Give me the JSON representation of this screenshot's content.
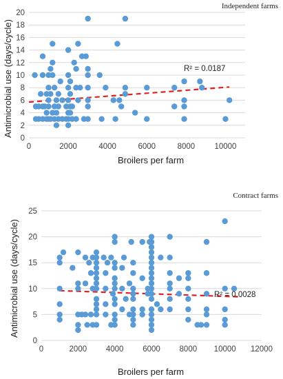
{
  "chart_data": [
    {
      "type": "scatter",
      "caption": "Independent farms",
      "xlabel": "Broilers per farm",
      "ylabel": "Antimicrobial use (days/cycle)",
      "xlim": [
        0,
        11000
      ],
      "ylim": [
        0,
        20
      ],
      "xticks": [
        0,
        2000,
        4000,
        6000,
        8000,
        10000
      ],
      "yticks": [
        0,
        2,
        4,
        6,
        8,
        10,
        12,
        14,
        16,
        18,
        20
      ],
      "x_tick_labels": [
        "0",
        "2000",
        "4000",
        "6000",
        "8000",
        "10000"
      ],
      "y_tick_labels": [
        "0",
        "2",
        "4",
        "6",
        "8",
        "10",
        "12",
        "14",
        "16",
        "18",
        "20"
      ],
      "grid": "horizontal",
      "trendline": {
        "style": "dashed linear",
        "r2_label": "R² = 0.0187",
        "x": [
          0,
          10200
        ],
        "y": [
          5.7,
          8.1
        ]
      },
      "points": [
        [
          300,
          10
        ],
        [
          350,
          5
        ],
        [
          350,
          3
        ],
        [
          500,
          5
        ],
        [
          500,
          3
        ],
        [
          600,
          7
        ],
        [
          700,
          13
        ],
        [
          700,
          10
        ],
        [
          700,
          5
        ],
        [
          700,
          3
        ],
        [
          800,
          5
        ],
        [
          900,
          7
        ],
        [
          900,
          4
        ],
        [
          900,
          3
        ],
        [
          1000,
          8
        ],
        [
          1000,
          10
        ],
        [
          1000,
          5
        ],
        [
          1000,
          3
        ],
        [
          1000,
          6
        ],
        [
          1100,
          11
        ],
        [
          1100,
          7
        ],
        [
          1100,
          3
        ],
        [
          1200,
          4
        ],
        [
          1200,
          10
        ],
        [
          1200,
          15
        ],
        [
          1200,
          12
        ],
        [
          1300,
          5
        ],
        [
          1300,
          8
        ],
        [
          1300,
          3
        ],
        [
          1400,
          6
        ],
        [
          1400,
          4
        ],
        [
          1400,
          2
        ],
        [
          1500,
          7
        ],
        [
          1500,
          3
        ],
        [
          1500,
          5
        ],
        [
          1600,
          9
        ],
        [
          1700,
          6
        ],
        [
          1700,
          3
        ],
        [
          1900,
          5
        ],
        [
          1900,
          3
        ],
        [
          2000,
          14
        ],
        [
          2000,
          10
        ],
        [
          2000,
          8
        ],
        [
          2000,
          6
        ],
        [
          2000,
          4
        ],
        [
          2000,
          3
        ],
        [
          2000,
          2
        ],
        [
          2100,
          9
        ],
        [
          2100,
          7
        ],
        [
          2100,
          5
        ],
        [
          2100,
          4
        ],
        [
          2200,
          5
        ],
        [
          2200,
          3
        ],
        [
          2300,
          12
        ],
        [
          2400,
          11
        ],
        [
          2400,
          8
        ],
        [
          2400,
          3
        ],
        [
          2500,
          15
        ],
        [
          2500,
          6
        ],
        [
          2600,
          8
        ],
        [
          2700,
          13
        ],
        [
          2800,
          3
        ],
        [
          2900,
          13
        ],
        [
          3000,
          19
        ],
        [
          3000,
          11
        ],
        [
          3000,
          10
        ],
        [
          3000,
          8
        ],
        [
          3000,
          6
        ],
        [
          3000,
          5
        ],
        [
          3000,
          3
        ],
        [
          3600,
          10
        ],
        [
          3700,
          3
        ],
        [
          3900,
          8
        ],
        [
          4300,
          6
        ],
        [
          4400,
          3
        ],
        [
          4500,
          15
        ],
        [
          4600,
          6
        ],
        [
          4700,
          5
        ],
        [
          4900,
          19
        ],
        [
          4900,
          8
        ],
        [
          4900,
          7
        ],
        [
          5400,
          4
        ],
        [
          6000,
          8
        ],
        [
          6000,
          3
        ],
        [
          7400,
          8
        ],
        [
          7400,
          5
        ],
        [
          7900,
          9
        ],
        [
          7900,
          6
        ],
        [
          7900,
          5
        ],
        [
          7900,
          3
        ],
        [
          8700,
          9
        ],
        [
          8800,
          8
        ],
        [
          10000,
          3
        ],
        [
          10200,
          6
        ]
      ]
    },
    {
      "type": "scatter",
      "caption": "Contract farms",
      "xlabel": "Broilers per farm",
      "ylabel": "Antimicrobial use (days/cycle)",
      "xlim": [
        0,
        12000
      ],
      "ylim": [
        0,
        25
      ],
      "xticks": [
        0,
        2000,
        4000,
        6000,
        8000,
        10000,
        12000
      ],
      "yticks": [
        0,
        5,
        10,
        15,
        20,
        25
      ],
      "x_tick_labels": [
        "0",
        "2000",
        "4000",
        "6000",
        "8000",
        "10000",
        "12000"
      ],
      "y_tick_labels": [
        "0",
        "5",
        "10",
        "15",
        "20",
        "25"
      ],
      "grid": "horizontal",
      "trendline": {
        "style": "dashed linear",
        "r2_label": "R² = 0.0028",
        "x": [
          1000,
          10900
        ],
        "y": [
          9.6,
          8.4
        ]
      },
      "points": [
        [
          1000,
          16
        ],
        [
          1000,
          15
        ],
        [
          1000,
          10
        ],
        [
          1000,
          7
        ],
        [
          1000,
          5
        ],
        [
          1000,
          4
        ],
        [
          1200,
          17
        ],
        [
          1700,
          14
        ],
        [
          2000,
          17
        ],
        [
          2000,
          11
        ],
        [
          2000,
          10
        ],
        [
          2000,
          5
        ],
        [
          2000,
          3
        ],
        [
          2000,
          2
        ],
        [
          2200,
          5
        ],
        [
          2400,
          16
        ],
        [
          2400,
          11
        ],
        [
          2400,
          5
        ],
        [
          2500,
          3
        ],
        [
          2600,
          15
        ],
        [
          2700,
          13
        ],
        [
          2700,
          5
        ],
        [
          2800,
          16
        ],
        [
          2800,
          10
        ],
        [
          2800,
          3
        ],
        [
          3000,
          17
        ],
        [
          3000,
          16
        ],
        [
          3000,
          15
        ],
        [
          3000,
          14
        ],
        [
          3000,
          13
        ],
        [
          3000,
          12
        ],
        [
          3000,
          11
        ],
        [
          3000,
          10
        ],
        [
          3000,
          8
        ],
        [
          3000,
          7
        ],
        [
          3000,
          6
        ],
        [
          3000,
          5
        ],
        [
          3000,
          3
        ],
        [
          3400,
          16
        ],
        [
          3500,
          13
        ],
        [
          3500,
          10
        ],
        [
          3500,
          7
        ],
        [
          3500,
          5
        ],
        [
          3600,
          15
        ],
        [
          3800,
          3
        ],
        [
          3800,
          16
        ],
        [
          3900,
          9
        ],
        [
          4000,
          20
        ],
        [
          4000,
          19
        ],
        [
          4000,
          15
        ],
        [
          4000,
          14
        ],
        [
          4000,
          12
        ],
        [
          4000,
          11
        ],
        [
          4000,
          10
        ],
        [
          4000,
          8
        ],
        [
          4000,
          7
        ],
        [
          4000,
          5
        ],
        [
          4000,
          4
        ],
        [
          4000,
          3
        ],
        [
          4400,
          14
        ],
        [
          4400,
          10
        ],
        [
          4400,
          6
        ],
        [
          4500,
          16
        ],
        [
          4600,
          8
        ],
        [
          4800,
          11
        ],
        [
          4800,
          5
        ],
        [
          4900,
          19
        ],
        [
          5000,
          15
        ],
        [
          5000,
          13
        ],
        [
          5000,
          10
        ],
        [
          5000,
          9
        ],
        [
          5000,
          8
        ],
        [
          5000,
          6
        ],
        [
          5000,
          5
        ],
        [
          5000,
          4
        ],
        [
          5000,
          3
        ],
        [
          5500,
          19
        ],
        [
          5500,
          12
        ],
        [
          5500,
          6
        ],
        [
          5500,
          5
        ],
        [
          5800,
          10
        ],
        [
          5800,
          9
        ],
        [
          5900,
          19
        ],
        [
          6000,
          20
        ],
        [
          6000,
          19
        ],
        [
          6000,
          18
        ],
        [
          6000,
          17
        ],
        [
          6000,
          16
        ],
        [
          6000,
          15
        ],
        [
          6000,
          14
        ],
        [
          6000,
          13
        ],
        [
          6000,
          12
        ],
        [
          6000,
          11
        ],
        [
          6000,
          10
        ],
        [
          6000,
          9
        ],
        [
          6000,
          8
        ],
        [
          6000,
          6
        ],
        [
          6000,
          5
        ],
        [
          6000,
          4
        ],
        [
          6000,
          3
        ],
        [
          6000,
          2
        ],
        [
          6300,
          7
        ],
        [
          6500,
          16
        ],
        [
          6500,
          6
        ],
        [
          7000,
          20
        ],
        [
          7000,
          16
        ],
        [
          7000,
          13
        ],
        [
          7000,
          11
        ],
        [
          7000,
          10
        ],
        [
          7000,
          8
        ],
        [
          7000,
          6
        ],
        [
          7500,
          9
        ],
        [
          7500,
          12
        ],
        [
          8000,
          13
        ],
        [
          8000,
          12
        ],
        [
          8000,
          10
        ],
        [
          8000,
          8
        ],
        [
          8000,
          6
        ],
        [
          8000,
          4
        ],
        [
          8500,
          3
        ],
        [
          8700,
          3
        ],
        [
          9000,
          19
        ],
        [
          9000,
          13
        ],
        [
          9000,
          9
        ],
        [
          9000,
          6
        ],
        [
          9000,
          5
        ],
        [
          9000,
          3
        ],
        [
          10000,
          23
        ],
        [
          10000,
          10
        ],
        [
          10000,
          6
        ],
        [
          10000,
          4
        ],
        [
          10000,
          3
        ],
        [
          10500,
          10
        ]
      ]
    }
  ]
}
